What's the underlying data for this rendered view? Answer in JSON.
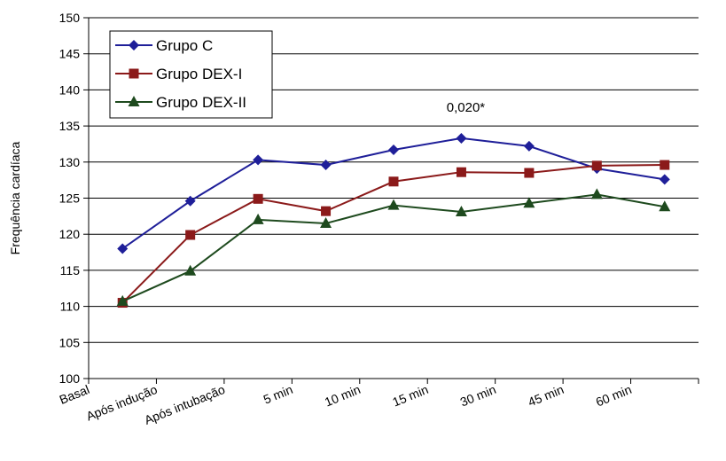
{
  "chart_data": {
    "type": "line",
    "ylabel": "Frequência cardíaca",
    "xlabel": "",
    "title": "",
    "ylim": [
      100,
      150
    ],
    "yticks": [
      100,
      105,
      110,
      115,
      120,
      125,
      130,
      135,
      140,
      145,
      150
    ],
    "categories": [
      "Basal",
      "Após indução",
      "Após intubação",
      "5 min",
      "10 min",
      "15 min",
      "30 min",
      "45 min",
      "60 min"
    ],
    "grid": "horizontal",
    "legend": "top-left",
    "series": [
      {
        "name": "Grupo C",
        "color": "#1f1f99",
        "marker": "diamond",
        "values": [
          118.0,
          124.6,
          130.3,
          129.6,
          131.7,
          133.3,
          132.2,
          129.1,
          127.6
        ]
      },
      {
        "name": "Grupo DEX-I",
        "color": "#8b1a1a",
        "marker": "square",
        "values": [
          110.5,
          119.9,
          124.9,
          123.2,
          127.3,
          128.6,
          128.5,
          129.5,
          129.6
        ]
      },
      {
        "name": "Grupo DEX-II",
        "color": "#1e4a1e",
        "marker": "triangle",
        "values": [
          110.7,
          114.9,
          122.0,
          121.5,
          124.0,
          123.1,
          124.3,
          125.5,
          123.8
        ]
      }
    ],
    "annotations": [
      {
        "text": "0,020*",
        "category": "15 min",
        "y": 136.5
      }
    ]
  }
}
